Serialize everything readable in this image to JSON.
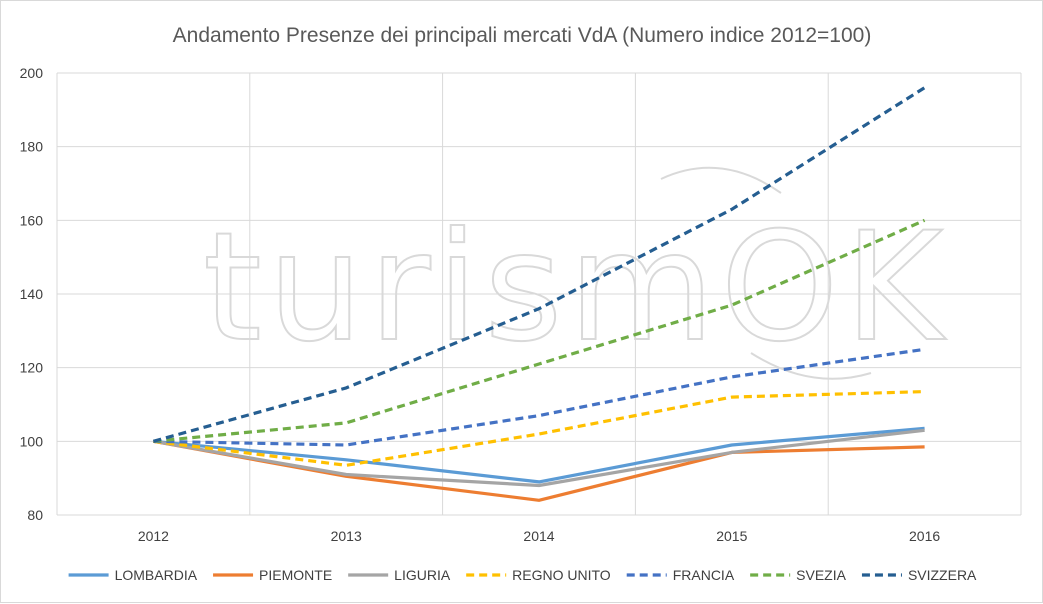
{
  "chart_data": {
    "type": "line",
    "title": "Andamento Presenze dei principali mercati VdA (Numero indice 2012=100)",
    "categories": [
      "2012",
      "2013",
      "2014",
      "2015",
      "2016"
    ],
    "ylim": [
      80,
      200
    ],
    "yticks": [
      80,
      100,
      120,
      140,
      160,
      180,
      200
    ],
    "grid": true,
    "legend_position": "bottom",
    "series": [
      {
        "name": "LOMBARDIA",
        "color": "#5b9bd5",
        "dashed": false,
        "values": [
          100,
          95,
          89,
          99,
          103.5
        ]
      },
      {
        "name": "PIEMONTE",
        "color": "#ed7d31",
        "dashed": false,
        "values": [
          100,
          90.5,
          84,
          97,
          98.5
        ]
      },
      {
        "name": "LIGURIA",
        "color": "#a5a5a5",
        "dashed": false,
        "values": [
          100,
          91,
          88,
          97,
          103
        ]
      },
      {
        "name": "REGNO UNITO",
        "color": "#ffc000",
        "dashed": true,
        "values": [
          100,
          93.5,
          102,
          112,
          113.5
        ]
      },
      {
        "name": "FRANCIA",
        "color": "#4472c4",
        "dashed": true,
        "values": [
          100,
          99,
          107,
          117.5,
          125
        ]
      },
      {
        "name": "SVEZIA",
        "color": "#70ad47",
        "dashed": true,
        "values": [
          100,
          105,
          121,
          137,
          160
        ]
      },
      {
        "name": "SVIZZERA",
        "color": "#255e91",
        "dashed": true,
        "values": [
          100,
          114.5,
          136,
          163,
          196
        ]
      }
    ]
  },
  "watermark": {
    "text": "turismOK",
    "color": "#d9d9d9"
  }
}
